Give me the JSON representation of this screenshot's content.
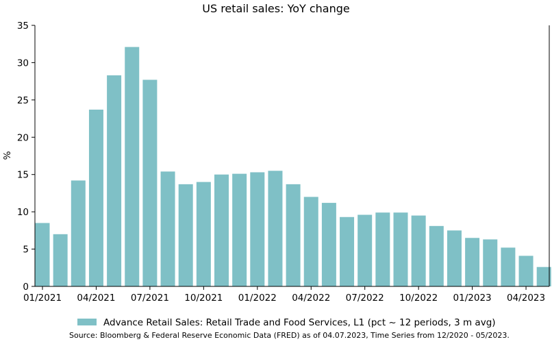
{
  "chart_data": {
    "type": "bar",
    "title": "US retail sales: YoY change",
    "xlabel": "",
    "ylabel": "%",
    "ylim": [
      0,
      35
    ],
    "yticks": [
      0,
      5,
      10,
      15,
      20,
      25,
      30,
      35
    ],
    "bar_color": "#7fc0c6",
    "categories": [
      "01/2021",
      "02/2021",
      "03/2021",
      "04/2021",
      "05/2021",
      "06/2021",
      "07/2021",
      "08/2021",
      "09/2021",
      "10/2021",
      "11/2021",
      "12/2021",
      "01/2022",
      "02/2022",
      "03/2022",
      "04/2022",
      "05/2022",
      "06/2022",
      "07/2022",
      "08/2022",
      "09/2022",
      "10/2022",
      "11/2022",
      "12/2022",
      "01/2023",
      "02/2023",
      "03/2023",
      "04/2023",
      "05/2023"
    ],
    "xtick_labels": [
      {
        "index": 0,
        "label": "01/2021"
      },
      {
        "index": 3,
        "label": "04/2021"
      },
      {
        "index": 6,
        "label": "07/2021"
      },
      {
        "index": 9,
        "label": "10/2021"
      },
      {
        "index": 12,
        "label": "01/2022"
      },
      {
        "index": 15,
        "label": "04/2022"
      },
      {
        "index": 18,
        "label": "07/2022"
      },
      {
        "index": 21,
        "label": "10/2022"
      },
      {
        "index": 24,
        "label": "01/2023"
      },
      {
        "index": 27,
        "label": "04/2023"
      }
    ],
    "series": [
      {
        "name": "Advance Retail Sales: Retail Trade and Food Services, L1 (pct ~ 12 periods, 3 m avg)",
        "values": [
          8.5,
          7.0,
          14.2,
          23.7,
          28.3,
          32.1,
          27.7,
          15.4,
          13.7,
          14.0,
          15.0,
          15.1,
          15.3,
          15.5,
          13.7,
          12.0,
          11.2,
          9.3,
          9.6,
          9.9,
          9.9,
          9.5,
          8.1,
          7.5,
          6.5,
          6.3,
          5.2,
          4.1,
          2.6
        ]
      }
    ],
    "legend_position": "bottom",
    "source": "Source: Bloomberg & Federal Reserve Economic Data (FRED) as of 04.07.2023, Time Series from 12/2020 - 05/2023."
  }
}
